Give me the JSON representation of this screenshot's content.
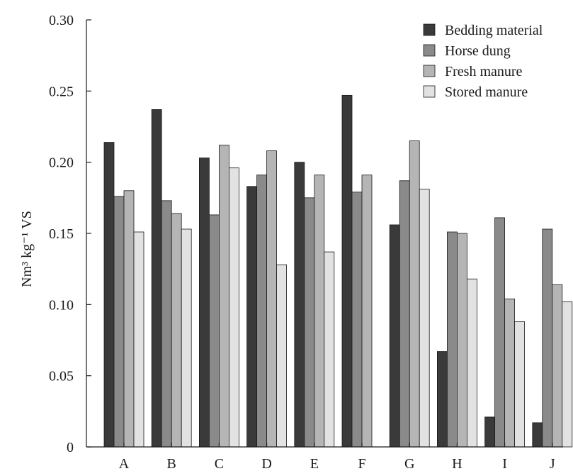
{
  "chart_data": {
    "type": "bar",
    "title": "",
    "xlabel": "",
    "ylabel": "Nm³ kg⁻¹ VS",
    "ylim": [
      0,
      0.3
    ],
    "yticks": [
      "0",
      "0.05",
      "0.10",
      "0.15",
      "0.20",
      "0.25",
      "0.30"
    ],
    "ytick_values": [
      0,
      0.05,
      0.1,
      0.15,
      0.2,
      0.25,
      0.3
    ],
    "grid": false,
    "legend_position": "top-right",
    "categories": [
      "A",
      "B",
      "C",
      "D",
      "E",
      "F",
      "G",
      "H",
      "I",
      "J"
    ],
    "series": [
      {
        "name": "Bedding material",
        "color": "#3a3a3a",
        "values": [
          0.214,
          0.237,
          0.203,
          0.183,
          0.2,
          0.247,
          0.156,
          0.067,
          0.021,
          0.017
        ]
      },
      {
        "name": "Horse dung",
        "color": "#8a8a8a",
        "values": [
          0.176,
          0.173,
          0.163,
          0.191,
          0.175,
          0.179,
          0.187,
          0.151,
          0.161,
          0.153
        ]
      },
      {
        "name": "Fresh manure",
        "color": "#b5b5b5",
        "values": [
          0.18,
          0.164,
          0.212,
          0.208,
          0.191,
          0.191,
          0.215,
          0.15,
          0.104,
          0.114
        ]
      },
      {
        "name": "Stored manure",
        "color": "#e2e2e2",
        "values": [
          0.151,
          0.153,
          0.196,
          0.128,
          0.137,
          null,
          0.181,
          0.118,
          0.088,
          0.102
        ]
      }
    ]
  }
}
